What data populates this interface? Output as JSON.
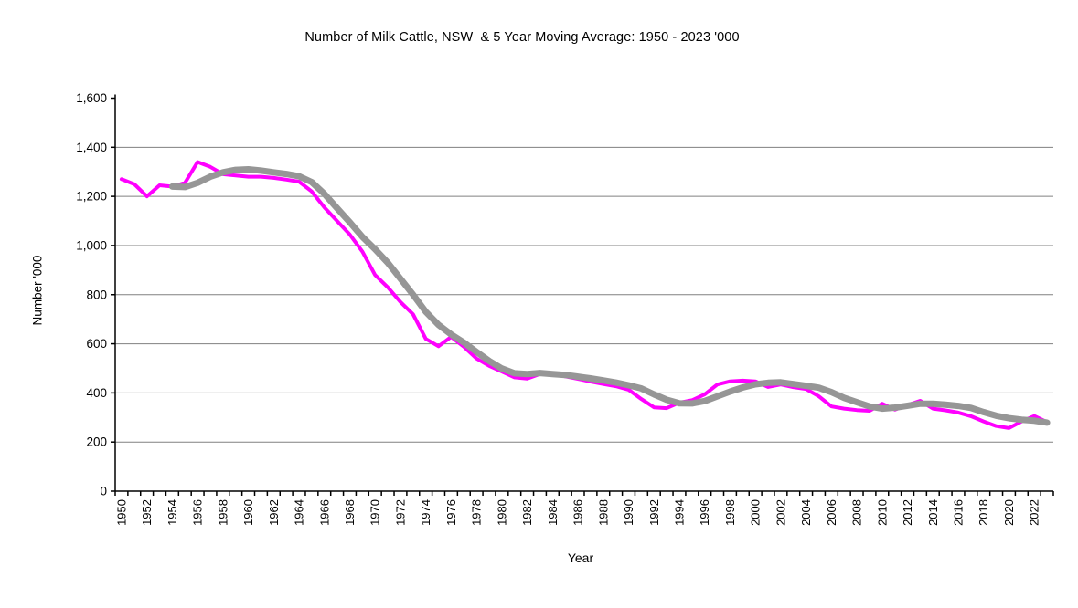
{
  "chart_data": {
    "type": "line",
    "title": "Number of Milk Cattle, NSW  & 5 Year Moving Average: 1950 - 2023 '000",
    "xlabel": "Year",
    "ylabel": "Number '000",
    "x_start": 1950,
    "x_end": 2023,
    "x_tick_label_step": 2,
    "x_tick_labels": [
      "1950",
      "1952",
      "1954",
      "1956",
      "1958",
      "1960",
      "1962",
      "1964",
      "1966",
      "1968",
      "1970",
      "1972",
      "1974",
      "1976",
      "1978",
      "1980",
      "1982",
      "1984",
      "1986",
      "1988",
      "1990",
      "1992",
      "1994",
      "1996",
      "1998",
      "2000",
      "2002",
      "2004",
      "2006",
      "2008",
      "2010",
      "2012",
      "2014",
      "2016",
      "2018",
      "2020",
      "2022"
    ],
    "ylim": [
      0,
      1600
    ],
    "y_tick_step": 200,
    "y_tick_labels": [
      "0",
      "200",
      "400",
      "600",
      "800",
      "1,000",
      "1,200",
      "1,400",
      "1,600"
    ],
    "grid": "horizontal gridlines at 200..1400, axes black, no legend",
    "legend_position": "none",
    "colors": {
      "cattle_line": "#FF00FF",
      "moving_average_line": "#969696",
      "gridline": "#808080",
      "axis": "#000000",
      "background": "#FFFFFF"
    },
    "series": [
      {
        "name": "Number of Milk Cattle",
        "color": "#FF00FF",
        "stroke_width": 4,
        "start_year": 1950,
        "values": [
          1270,
          1250,
          1200,
          1245,
          1240,
          1255,
          1340,
          1320,
          1290,
          1285,
          1280,
          1280,
          1275,
          1268,
          1260,
          1220,
          1155,
          1100,
          1045,
          975,
          880,
          830,
          770,
          720,
          620,
          590,
          628,
          588,
          540,
          510,
          487,
          463,
          458,
          477,
          478,
          467,
          457,
          446,
          436,
          427,
          413,
          375,
          341,
          338,
          360,
          370,
          394,
          434,
          447,
          450,
          447,
          424,
          434,
          423,
          416,
          386,
          345,
          336,
          330,
          327,
          356,
          332,
          351,
          368,
          336,
          329,
          320,
          305,
          284,
          265,
          257,
          284,
          306,
          281
        ]
      },
      {
        "name": "5 Year Moving Average",
        "color": "#969696",
        "stroke_width": 7,
        "start_year": 1954,
        "values": [
          1240,
          1238,
          1255,
          1280,
          1298,
          1308,
          1310,
          1305,
          1298,
          1291,
          1282,
          1258,
          1210,
          1152,
          1095,
          1035,
          985,
          930,
          865,
          800,
          730,
          677,
          638,
          605,
          567,
          530,
          499,
          480,
          477,
          481,
          477,
          473,
          466,
          459,
          451,
          442,
          431,
          418,
          394,
          372,
          358,
          357,
          367,
          386,
          405,
          422,
          435,
          441,
          443,
          436,
          429,
          421,
          403,
          380,
          362,
          345,
          336,
          340,
          348,
          356,
          356,
          352,
          347,
          339,
          322,
          307,
          297,
          291,
          287,
          279
        ]
      }
    ]
  }
}
